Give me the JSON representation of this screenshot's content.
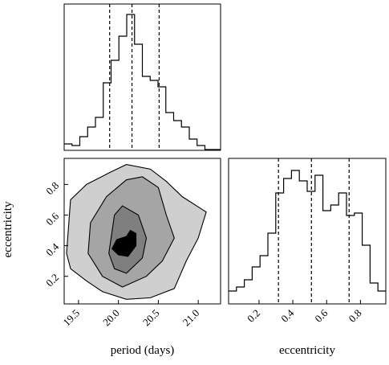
{
  "chart_data": [
    {
      "type": "histogram",
      "color": "#000000",
      "bins": [
        19.32,
        19.418,
        19.516,
        19.614,
        19.712,
        19.81,
        19.908,
        20.006,
        20.104,
        20.202,
        20.3,
        20.398,
        20.496,
        20.594,
        20.692,
        20.79,
        20.888,
        20.986,
        21.084,
        21.182,
        21.28
      ],
      "values": [
        8,
        6,
        17,
        29,
        41,
        84,
        112,
        142,
        169,
        132,
        92,
        87,
        79,
        47,
        37,
        29,
        14,
        6,
        1,
        1
      ],
      "xlim": [
        19.32,
        21.28
      ],
      "ylim": [
        0,
        182
      ],
      "quantiles": [
        19.89,
        20.17,
        20.51
      ]
    },
    {
      "type": "contour",
      "x_label": "period (days)",
      "y_label": "eccentricity",
      "xlim": [
        19.32,
        21.28
      ],
      "ylim": [
        0.02,
        0.97
      ],
      "xticks": [
        {
          "value": 19.5,
          "label": "19.5"
        },
        {
          "value": 20,
          "label": "20.0"
        },
        {
          "value": 20.5,
          "label": "20.5"
        },
        {
          "value": 21,
          "label": "21.0"
        }
      ],
      "yticks": [
        0.2,
        0.4,
        0.6,
        0.8
      ],
      "contours": [
        {
          "color": "#cfcfcf",
          "x": [
            19.35,
            19.4,
            19.6,
            19.9,
            20.1,
            20.4,
            20.6,
            20.8,
            21.1,
            21.0,
            20.85,
            20.7,
            20.4,
            20.1,
            19.8,
            19.6,
            19.4
          ],
          "y": [
            0.35,
            0.7,
            0.8,
            0.88,
            0.93,
            0.9,
            0.82,
            0.72,
            0.62,
            0.45,
            0.3,
            0.12,
            0.06,
            0.05,
            0.1,
            0.17,
            0.25
          ]
        },
        {
          "color": "#a5a5a5",
          "x": [
            19.65,
            19.85,
            20.1,
            20.3,
            20.5,
            20.6,
            20.7,
            20.55,
            20.35,
            20.05,
            19.8,
            19.62
          ],
          "y": [
            0.55,
            0.72,
            0.83,
            0.85,
            0.78,
            0.6,
            0.45,
            0.3,
            0.2,
            0.13,
            0.2,
            0.35
          ]
        },
        {
          "color": "#7f7f7f",
          "x": [
            19.88,
            19.95,
            20.05,
            20.25,
            20.35,
            20.3,
            20.1,
            19.95
          ],
          "y": [
            0.35,
            0.6,
            0.66,
            0.6,
            0.45,
            0.32,
            0.22,
            0.25
          ]
        },
        {
          "color": "#000000",
          "x": [
            19.92,
            19.98,
            20.1,
            20.15,
            20.22,
            20.22,
            20.12,
            20.0
          ],
          "y": [
            0.38,
            0.44,
            0.46,
            0.5,
            0.48,
            0.4,
            0.33,
            0.34
          ]
        }
      ]
    },
    {
      "type": "histogram",
      "color": "#000000",
      "x_label": "eccentricity",
      "bins": [
        0.02,
        0.0665,
        0.113,
        0.1595,
        0.206,
        0.2525,
        0.299,
        0.3455,
        0.392,
        0.4385,
        0.485,
        0.5315,
        0.578,
        0.6245,
        0.671,
        0.7175,
        0.764,
        0.8105,
        0.857,
        0.9035,
        0.95
      ],
      "values": [
        16,
        21,
        30,
        46,
        60,
        88,
        138,
        156,
        166,
        153,
        140,
        160,
        116,
        123,
        138,
        110,
        113,
        73,
        26,
        16
      ],
      "xlim": [
        0.02,
        0.95
      ],
      "ylim": [
        0,
        181
      ],
      "xticks": [
        0.2,
        0.4,
        0.6,
        0.8
      ],
      "quantiles": [
        0.315,
        0.51,
        0.733
      ]
    }
  ]
}
